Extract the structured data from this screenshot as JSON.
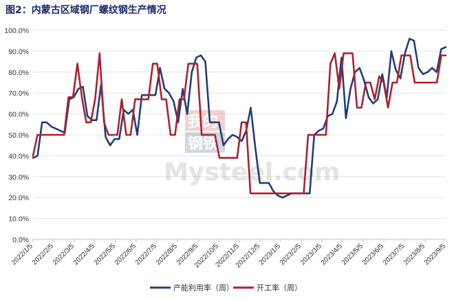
{
  "chart_data": {
    "type": "line",
    "title": "图2：内蒙古区域钢厂螺纹钢生产情况",
    "ylim": [
      0,
      100
    ],
    "y_ticks": [
      "0.0%",
      "10.0%",
      "20.0%",
      "30.0%",
      "40.0%",
      "50.0%",
      "60.0%",
      "70.0%",
      "80.0%",
      "90.0%",
      "100.0%"
    ],
    "x_ticks": [
      "2022/1/5",
      "2022/2/5",
      "2022/3/5",
      "2022/4/5",
      "2022/5/5",
      "2022/6/5",
      "2022/7/5",
      "2022/8/5",
      "2022/9/5",
      "2022/10/5",
      "2022/11/5",
      "2022/12/5",
      "2023/1/5",
      "2023/2/5",
      "2023/3/5",
      "2023/4/5",
      "2023/5/5",
      "2023/6/5",
      "2023/7/5",
      "2023/8/5",
      "2023/9/5"
    ],
    "grid": true,
    "legend_position": "bottom",
    "series": [
      {
        "name": "产能利用率（周）",
        "color": "#1f3e7a",
        "values": [
          39,
          40,
          56,
          56,
          54,
          53,
          52,
          51,
          67,
          68,
          72,
          73,
          59,
          57,
          57,
          74,
          49,
          45,
          48,
          48,
          62,
          60,
          62,
          50,
          69,
          69,
          69,
          69,
          82,
          72,
          70,
          66,
          56,
          72,
          60,
          80,
          87,
          88,
          85,
          56,
          56,
          56,
          45,
          48,
          50,
          49,
          47,
          52,
          63,
          44,
          27,
          27,
          27,
          23,
          21,
          20,
          21,
          22,
          22,
          22,
          22,
          22,
          50,
          52,
          53,
          59,
          60,
          66,
          87,
          58,
          72,
          80,
          82,
          76,
          68,
          65,
          67,
          79,
          68,
          90,
          81,
          77,
          89,
          96,
          95,
          82,
          79,
          80,
          82,
          80,
          91,
          92
        ]
      },
      {
        "name": "开工率（周）",
        "color": "#b01e2f",
        "values": [
          40,
          50,
          50,
          50,
          50,
          50,
          50,
          50,
          68,
          68,
          84,
          68,
          56,
          56,
          67,
          89,
          56,
          50,
          50,
          50,
          67,
          50,
          50,
          67,
          67,
          67,
          67,
          84,
          84,
          67,
          67,
          50,
          50,
          67,
          67,
          84,
          84,
          84,
          50,
          50,
          50,
          50,
          39,
          39,
          39,
          39,
          39,
          56,
          56,
          22,
          22,
          22,
          22,
          22,
          22,
          22,
          22,
          22,
          22,
          22,
          22,
          22,
          50,
          50,
          50,
          50,
          50,
          84,
          89,
          72,
          89,
          89,
          89,
          63,
          63,
          75,
          75,
          67,
          78,
          75,
          63,
          75,
          75,
          88,
          88,
          88,
          75,
          75,
          75,
          75,
          75,
          75,
          88,
          88
        ]
      }
    ]
  },
  "watermark": {
    "cn_left": "我的",
    "cn_right": "钢铁",
    "en": "Mysteel.com"
  }
}
